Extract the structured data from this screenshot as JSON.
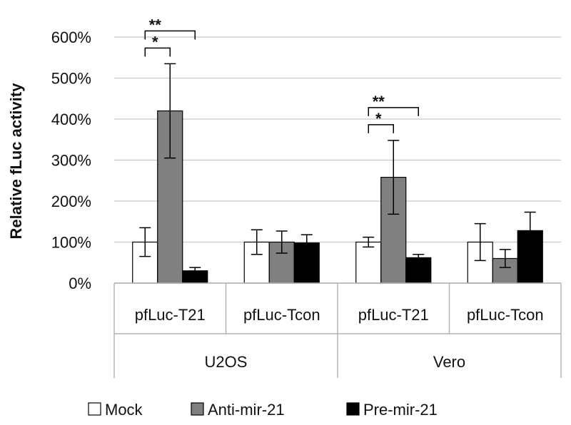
{
  "chart_data": {
    "type": "bar",
    "ylabel": "Relative fLuc activity",
    "ylim": [
      0,
      600
    ],
    "yticks": [
      "0%",
      "100%",
      "200%",
      "300%",
      "400%",
      "500%",
      "600%"
    ],
    "grid": true,
    "legend_position": "bottom",
    "groups": [
      {
        "label": "U2OS",
        "categories": [
          "pfLuc-T21",
          "pfLuc-Tcon"
        ]
      },
      {
        "label": "Vero",
        "categories": [
          "pfLuc-T21",
          "pfLuc-Tcon"
        ]
      }
    ],
    "categories": [
      "pfLuc-T21",
      "pfLuc-Tcon",
      "pfLuc-T21",
      "pfLuc-Tcon"
    ],
    "series": [
      {
        "name": "Mock",
        "color": "#ffffff",
        "values": [
          100,
          100,
          100,
          100
        ],
        "errors": [
          35,
          30,
          12,
          45
        ]
      },
      {
        "name": "Anti-mir-21",
        "color": "#808080",
        "values": [
          420,
          100,
          258,
          60
        ],
        "errors": [
          115,
          27,
          90,
          22
        ]
      },
      {
        "name": "Pre-mir-21",
        "color": "#000000",
        "values": [
          30,
          98,
          62,
          128
        ],
        "errors": [
          8,
          20,
          8,
          45
        ]
      }
    ],
    "significance": [
      {
        "label": "*",
        "category_index": 0,
        "from_series": 0,
        "to_series": 1,
        "level": 1
      },
      {
        "label": "**",
        "category_index": 0,
        "from_series": 0,
        "to_series": 2,
        "level": 2
      },
      {
        "label": "*",
        "category_index": 2,
        "from_series": 0,
        "to_series": 1,
        "level": 1
      },
      {
        "label": "**",
        "category_index": 2,
        "from_series": 0,
        "to_series": 2,
        "level": 2
      }
    ]
  }
}
